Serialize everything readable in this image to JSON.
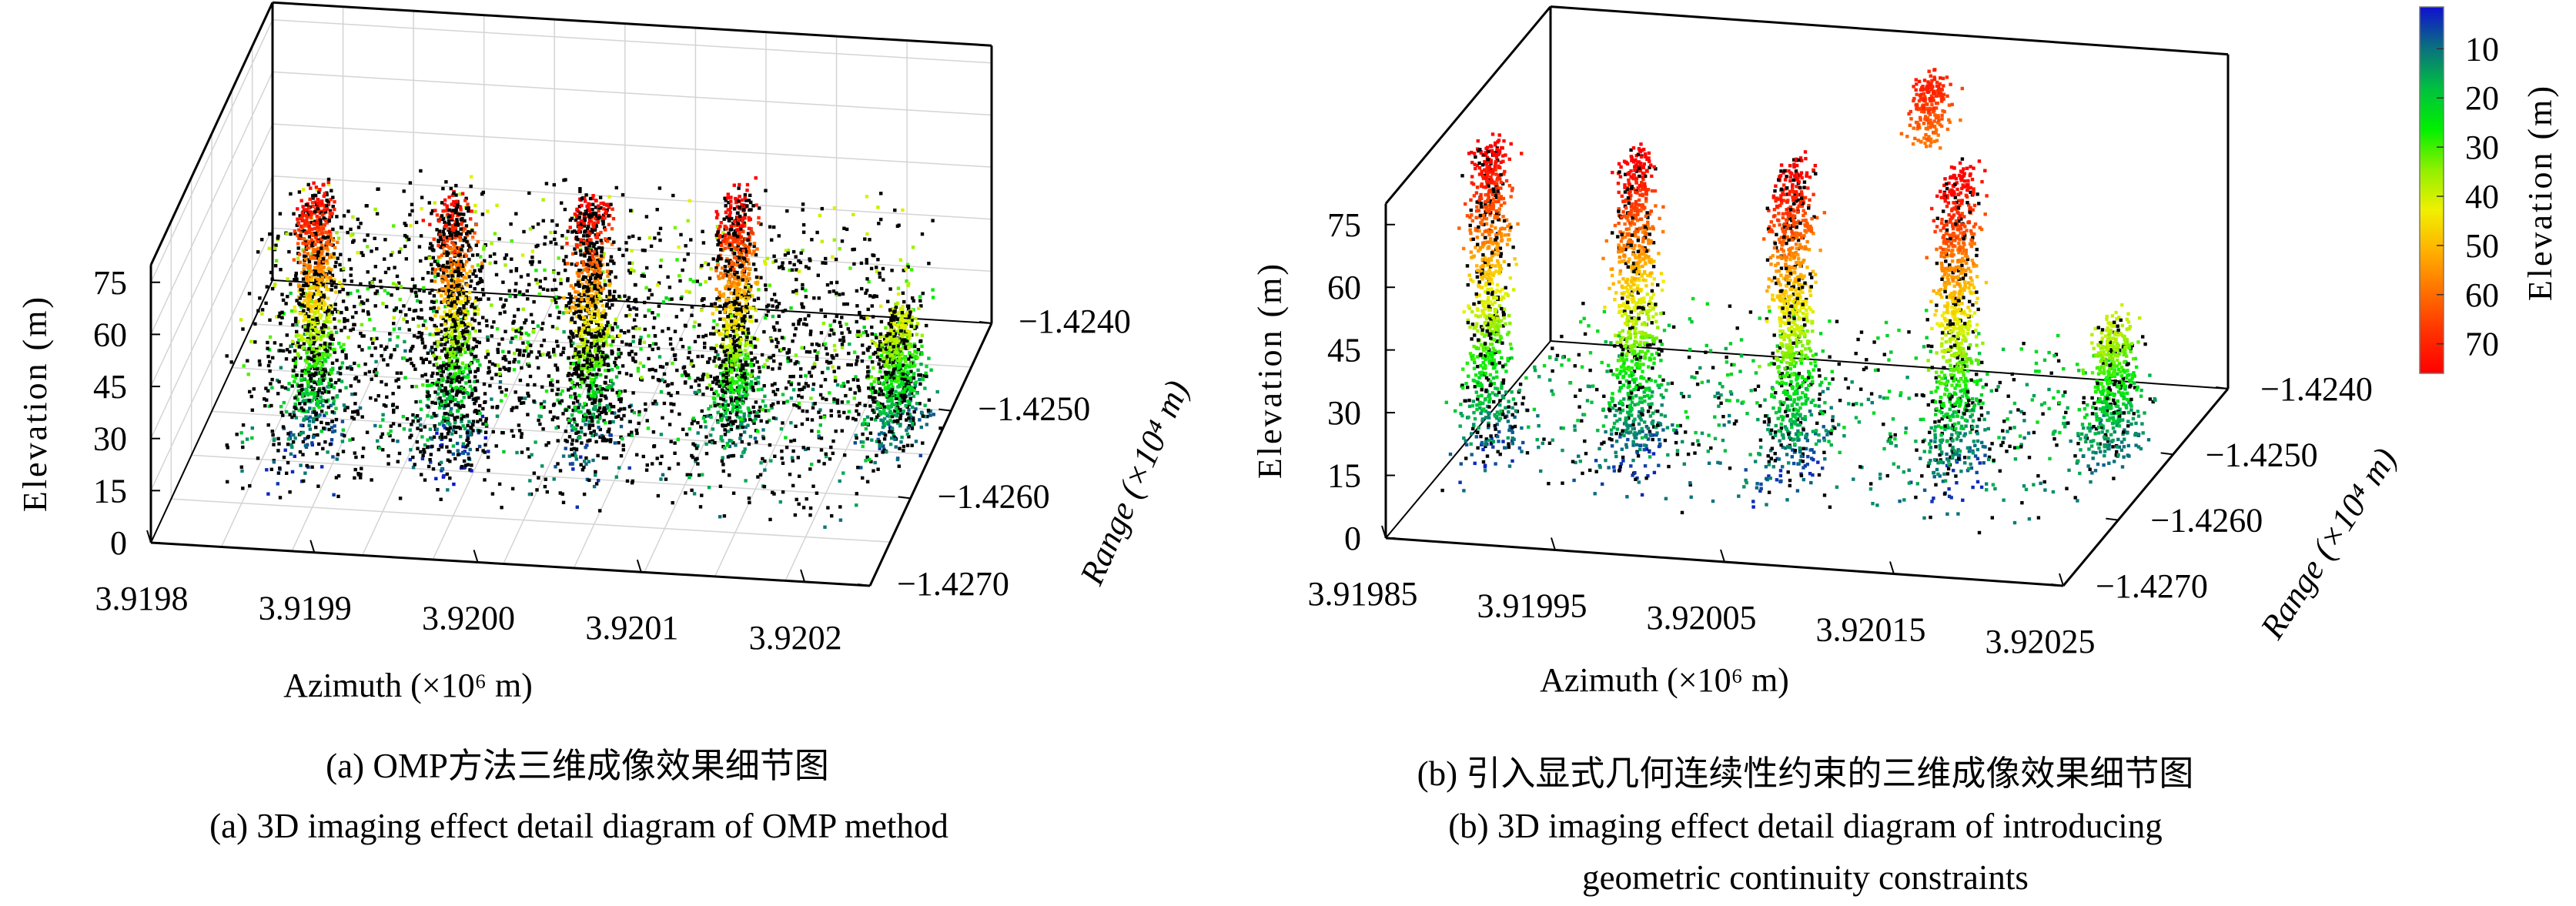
{
  "chart_data": [
    {
      "type": "scatter3d",
      "panel": "a",
      "xlabel": "Azimuth (×10⁶ m)",
      "ylabel": "Range (×10⁴ m)",
      "zlabel": "Elevation (m)",
      "xlim": [
        3.9198,
        3.92024
      ],
      "ylim": [
        -1.427,
        -1.424
      ],
      "zlim": [
        0,
        80
      ],
      "xticks": [
        "3.9198",
        "3.9199",
        "3.9200",
        "3.9201",
        "3.9202"
      ],
      "yticks": [
        "-1.4270",
        "-1.4260",
        "-1.4250",
        "-1.4240"
      ],
      "zticks": [
        "0",
        "15",
        "30",
        "45",
        "60",
        "75"
      ],
      "grid": true,
      "outlier_color": "#000000",
      "point_clusters": [
        {
          "azimuth": 3.919875,
          "range": -1.42595,
          "elevation": [
            3,
            75
          ],
          "count": 900,
          "outlier_fraction": 0.25
        },
        {
          "azimuth": 3.919958,
          "range": -1.4259,
          "elevation": [
            0,
            75
          ],
          "count": 900,
          "outlier_fraction": 0.45
        },
        {
          "azimuth": 3.920042,
          "range": -1.4259,
          "elevation": [
            3,
            78
          ],
          "count": 900,
          "outlier_fraction": 0.45
        },
        {
          "azimuth": 3.920128,
          "range": -1.4258,
          "elevation": [
            8,
            78
          ],
          "count": 900,
          "outlier_fraction": 0.35
        },
        {
          "azimuth": 3.920222,
          "range": -1.4256,
          "elevation": [
            5,
            42
          ],
          "count": 700,
          "outlier_fraction": 0.3
        }
      ]
    },
    {
      "type": "scatter3d",
      "panel": "b",
      "xlabel": "Azimuth (×10⁶ m)",
      "ylabel": "Range (×10⁴ m)",
      "zlabel": "Elevation (m)",
      "xlim": [
        3.91985,
        3.92025
      ],
      "ylim": [
        -1.427,
        -1.424
      ],
      "zlim": [
        0,
        80
      ],
      "xticks": [
        "3.91985",
        "3.91995",
        "3.92005",
        "3.92015",
        "3.92025"
      ],
      "yticks": [
        "-1.4270",
        "-1.4260",
        "-1.4250",
        "-1.4240"
      ],
      "zticks": [
        "0",
        "15",
        "30",
        "45",
        "60",
        "75"
      ],
      "grid": false,
      "outlier_color": "#000000",
      "point_clusters": [
        {
          "azimuth": 3.919877,
          "range": -1.42595,
          "elevation": [
            3,
            78
          ],
          "count": 900,
          "outlier_fraction": 0.2
        },
        {
          "azimuth": 3.919962,
          "range": -1.4259,
          "elevation": [
            3,
            78
          ],
          "count": 900,
          "outlier_fraction": 0.15
        },
        {
          "azimuth": 3.920054,
          "range": -1.4259,
          "elevation": [
            3,
            78
          ],
          "count": 900,
          "outlier_fraction": 0.18
        },
        {
          "azimuth": 3.92015,
          "range": -1.42585,
          "elevation": [
            3,
            78
          ],
          "count": 900,
          "outlier_fraction": 0.15
        },
        {
          "azimuth": 3.920234,
          "range": -1.4256,
          "elevation": [
            8,
            40
          ],
          "count": 500,
          "outlier_fraction": 0.15
        },
        {
          "azimuth": 3.92008,
          "range": -1.4242,
          "elevation": [
            58,
            72
          ],
          "count": 200,
          "outlier_fraction": 0
        }
      ],
      "colorbar": {
        "label": "Elevation (m)",
        "ticks": [
          "10",
          "20",
          "30",
          "40",
          "50",
          "60",
          "70"
        ],
        "clim": [
          1.5,
          76
        ],
        "colormap": [
          "#1010d0",
          "#0a7080",
          "#00c040",
          "#00f000",
          "#90f000",
          "#f0f000",
          "#ffb000",
          "#ff7000",
          "#ff3000",
          "#ff0000"
        ]
      }
    }
  ],
  "captions": {
    "a_cn": "(a) OMP方法三维成像效果细节图",
    "a_en": "(a) 3D imaging effect detail diagram of OMP method",
    "b_cn": "(b) 引入显式几何连续性约束的三维成像效果细节图",
    "b_en_1": "(b) 3D imaging effect detail diagram of introducing",
    "b_en_2": "geometric continuity constraints"
  }
}
